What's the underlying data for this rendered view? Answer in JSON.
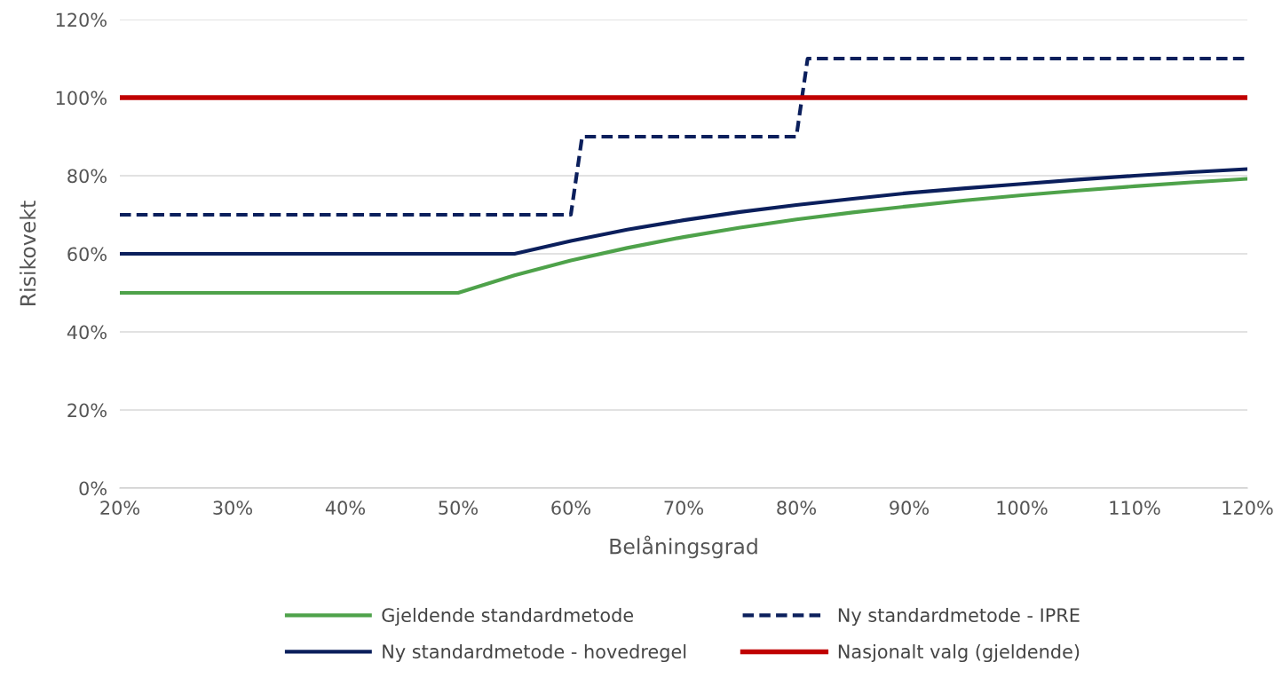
{
  "chart_data": {
    "type": "line",
    "xlabel": "Belåningsgrad",
    "ylabel": "Risikovekt",
    "xlim": [
      20,
      120
    ],
    "ylim": [
      0,
      120
    ],
    "xticks": [
      {
        "value": 20,
        "label": "20%"
      },
      {
        "value": 30,
        "label": "30%"
      },
      {
        "value": 40,
        "label": "40%"
      },
      {
        "value": 50,
        "label": "50%"
      },
      {
        "value": 60,
        "label": "60%"
      },
      {
        "value": 70,
        "label": "70%"
      },
      {
        "value": 80,
        "label": "80%"
      },
      {
        "value": 90,
        "label": "90%"
      },
      {
        "value": 100,
        "label": "100%"
      },
      {
        "value": 110,
        "label": "110%"
      },
      {
        "value": 120,
        "label": "120%"
      }
    ],
    "yticks": [
      {
        "value": 0,
        "label": "0%"
      },
      {
        "value": 20,
        "label": "20%"
      },
      {
        "value": 40,
        "label": "40%"
      },
      {
        "value": 60,
        "label": "60%"
      },
      {
        "value": 80,
        "label": "80%"
      },
      {
        "value": 100,
        "label": "100%"
      },
      {
        "value": 120,
        "label": "120%"
      }
    ],
    "grid": "y",
    "legend": "bottom",
    "marker": "none",
    "series": [
      {
        "name": "Gjeldende standardmetode",
        "color": "#4ea24a",
        "line_style": "solid",
        "x": [
          20,
          50,
          55,
          60,
          65,
          70,
          75,
          80,
          85,
          90,
          95,
          100,
          105,
          110,
          115,
          120
        ],
        "values": [
          50,
          50,
          54.5,
          58.3,
          61.5,
          64.3,
          66.7,
          68.8,
          70.6,
          72.2,
          73.7,
          75,
          76.2,
          77.3,
          78.3,
          79.2
        ]
      },
      {
        "name": "Ny standardmetode - hovedregel",
        "color": "#0b1f5c",
        "line_style": "solid",
        "x": [
          20,
          55,
          60,
          65,
          70,
          75,
          80,
          85,
          90,
          95,
          100,
          105,
          110,
          115,
          120
        ],
        "values": [
          60,
          60,
          63.3,
          66.2,
          68.6,
          70.7,
          72.5,
          74.1,
          75.6,
          76.8,
          77.9,
          79,
          80,
          80.9,
          81.7
        ]
      },
      {
        "name": "Ny standardmetode - IPRE",
        "color": "#0b1f5c",
        "line_style": "dashed",
        "x": [
          20,
          60,
          61,
          80,
          81,
          120
        ],
        "values": [
          70,
          70,
          90,
          90,
          110,
          110
        ]
      },
      {
        "name": "Nasjonalt valg (gjeldende)",
        "color": "#c00000",
        "line_style": "solid",
        "x": [
          20,
          120
        ],
        "values": [
          100,
          100
        ]
      }
    ]
  }
}
